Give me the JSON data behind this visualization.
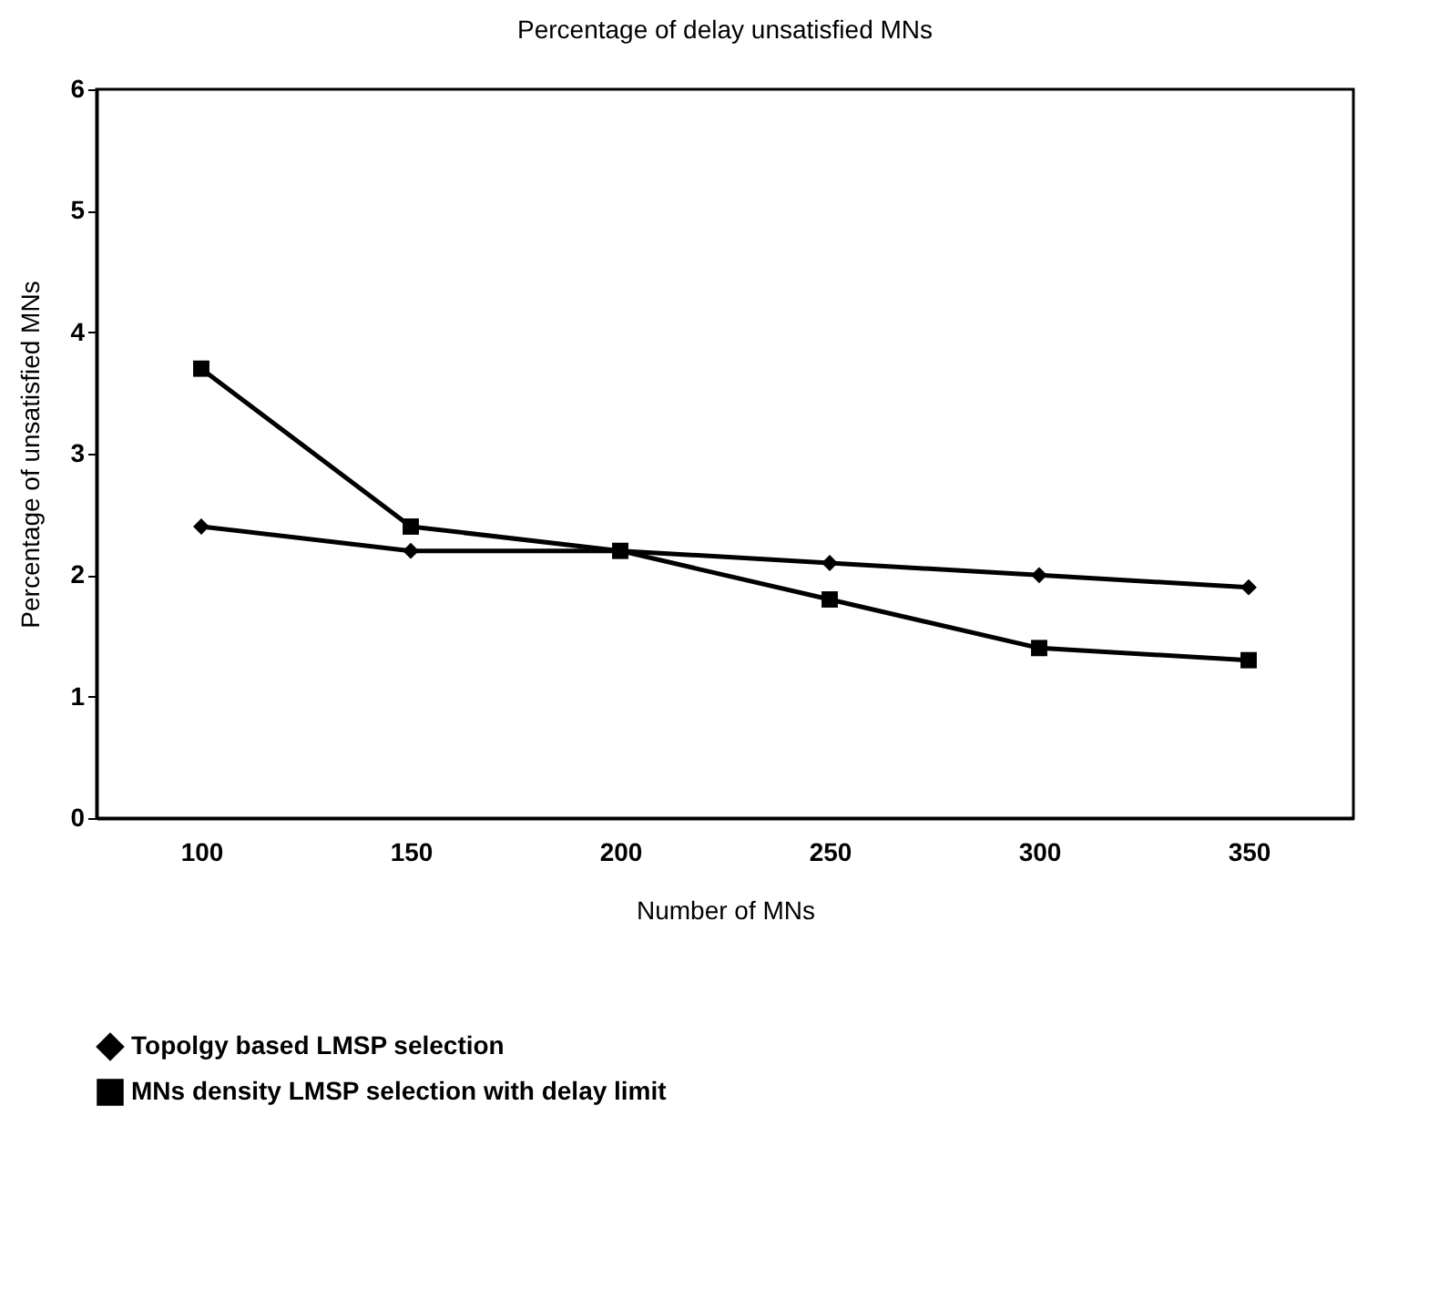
{
  "chart_data": {
    "type": "line",
    "title": "Percentage of delay unsatisfied MNs",
    "xlabel": "Number of MNs",
    "ylabel": "Percentage of unsatisfied MNs",
    "categories": [
      "100",
      "150",
      "200",
      "250",
      "300",
      "350"
    ],
    "series": [
      {
        "name": "Topolgy based LMSP selection",
        "color": "#000000",
        "marker": "diamond",
        "values": [
          2.4,
          2.2,
          2.2,
          2.1,
          2.0,
          1.9
        ]
      },
      {
        "name": "MNs density LMSP selection with delay limit",
        "color": "#000000",
        "marker": "square",
        "values": [
          3.7,
          2.4,
          2.2,
          1.8,
          1.4,
          1.3
        ]
      }
    ],
    "ylim": [
      0,
      6
    ],
    "yticks": [
      0,
      1,
      2,
      3,
      4,
      5,
      6
    ],
    "grid": false,
    "legend": "bottom",
    "line_style": "solid"
  }
}
